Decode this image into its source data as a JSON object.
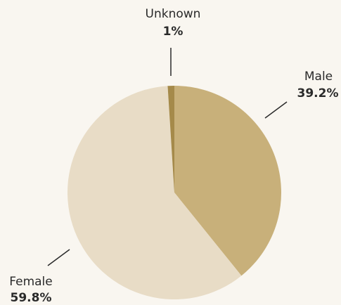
{
  "chart_data": {
    "type": "pie",
    "categories": [
      "Male",
      "Female",
      "Unknown"
    ],
    "values": [
      39.2,
      59.8,
      1
    ],
    "value_labels": [
      "39.2%",
      "59.8%",
      "1%"
    ],
    "colors": [
      "#c8b07a",
      "#e8dcc6",
      "#a58a4a"
    ]
  }
}
